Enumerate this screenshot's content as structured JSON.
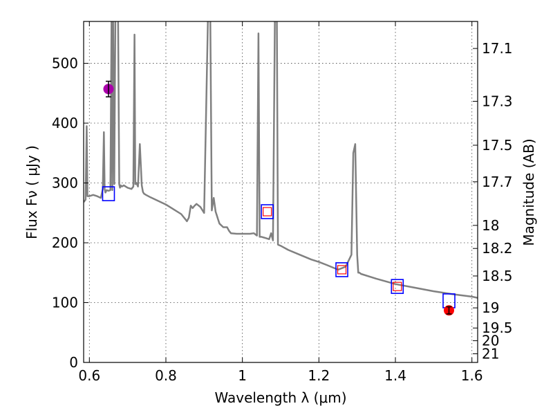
{
  "chart_data": {
    "type": "line",
    "xlabel": "Wavelength  λ (μm)",
    "ylabel": "Flux  Fν  ( μJy )",
    "ylabel_right": "Magnitude (AB)",
    "xlim": [
      0.585,
      1.615
    ],
    "ylim": [
      0,
      570
    ],
    "x_ticks": [
      0.6,
      0.8,
      1,
      1.2,
      1.4,
      1.6
    ],
    "x_tick_labels": [
      "0.6",
      "0.8",
      "1",
      "1.2",
      "1.4",
      "1.6"
    ],
    "y_ticks": [
      0,
      100,
      200,
      300,
      400,
      500
    ],
    "y_tick_labels": [
      "0",
      "100",
      "200",
      "300",
      "400",
      "500"
    ],
    "right_ticks": [
      17.1,
      17.3,
      17.5,
      17.7,
      18,
      18.2,
      18.5,
      19,
      19.5,
      20,
      21
    ],
    "right_tick_labels": [
      "17.1",
      "17.3",
      "17.5",
      "17.7",
      "18",
      "18.2",
      "18.5",
      "19",
      "19.5",
      "20",
      "21"
    ],
    "grid": true,
    "colors": {
      "spectrum": "#808080",
      "model_box": "#0000ff",
      "model_inner": "#ff0000",
      "obs_optical": "#aa00aa",
      "obs_nir": "#ff0000"
    },
    "spectrum": {
      "x": [
        0.585,
        0.59,
        0.593,
        0.595,
        0.6,
        0.61,
        0.62,
        0.63,
        0.635,
        0.638,
        0.64,
        0.642,
        0.645,
        0.65,
        0.655,
        0.658,
        0.66,
        0.662,
        0.665,
        0.668,
        0.672,
        0.675,
        0.678,
        0.68,
        0.682,
        0.685,
        0.69,
        0.7,
        0.71,
        0.715,
        0.718,
        0.72,
        0.723,
        0.727,
        0.732,
        0.737,
        0.74,
        0.743,
        0.748,
        0.76,
        0.78,
        0.8,
        0.82,
        0.84,
        0.85,
        0.855,
        0.86,
        0.865,
        0.87,
        0.875,
        0.88,
        0.89,
        0.9,
        0.91,
        0.913,
        0.916,
        0.92,
        0.925,
        0.93,
        0.933,
        0.936,
        0.94,
        0.95,
        0.96,
        0.965,
        0.97,
        0.985,
        1.0,
        1.02,
        1.03,
        1.038,
        1.042,
        1.045,
        1.05,
        1.06,
        1.07,
        1.075,
        1.08,
        1.085,
        1.088,
        1.09,
        1.093,
        1.096,
        1.1,
        1.12,
        1.15,
        1.18,
        1.2,
        1.22,
        1.25,
        1.27,
        1.285,
        1.29,
        1.295,
        1.3,
        1.303,
        1.306,
        1.31,
        1.35,
        1.4,
        1.45,
        1.5,
        1.55,
        1.6,
        1.615
      ],
      "y": [
        268,
        272,
        395,
        278,
        278,
        280,
        278,
        275,
        290,
        385,
        290,
        284,
        288,
        287,
        288,
        580,
        288,
        580,
        298,
        580,
        580,
        580,
        298,
        292,
        296,
        294,
        296,
        292,
        290,
        294,
        548,
        298,
        300,
        294,
        365,
        296,
        285,
        282,
        280,
        276,
        270,
        264,
        256,
        248,
        240,
        236,
        242,
        262,
        258,
        262,
        265,
        260,
        250,
        580,
        580,
        580,
        254,
        275,
        252,
        246,
        240,
        232,
        226,
        226,
        220,
        216,
        215,
        215,
        215,
        216,
        212,
        550,
        210,
        210,
        208,
        206,
        216,
        204,
        580,
        580,
        580,
        197,
        196,
        195,
        188,
        180,
        172,
        168,
        163,
        155,
        160,
        180,
        350,
        365,
        180,
        150,
        150,
        148,
        140,
        131,
        125,
        119,
        114,
        110,
        108
      ]
    },
    "model_points": {
      "x": [
        0.65,
        1.065,
        1.26,
        1.405,
        1.54
      ],
      "y": [
        282,
        252,
        155,
        127,
        103
      ],
      "inner": [
        false,
        true,
        true,
        true,
        false
      ]
    },
    "observed_points": [
      {
        "x": 0.65,
        "y": 457,
        "yerr": 13,
        "color": "#aa00aa"
      },
      {
        "x": 1.54,
        "y": 87,
        "yerr": 6,
        "color": "#ff0000"
      }
    ]
  }
}
